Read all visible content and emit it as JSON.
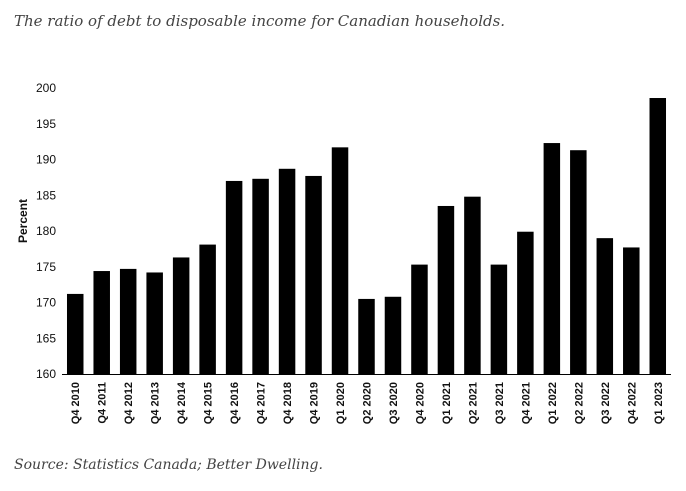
{
  "chart_title": "The ratio of debt to disposable income for Canadian households.",
  "source": "Source: Statistics Canada; Better Dwelling.",
  "chart_data": {
    "type": "bar",
    "title": "The ratio of debt to disposable income for Canadian households.",
    "xlabel": "",
    "ylabel": "Percent",
    "ylim": [
      160,
      200
    ],
    "yticks": [
      160,
      165,
      170,
      175,
      180,
      185,
      190,
      195,
      200
    ],
    "grid": false,
    "bar_color": "#000000",
    "categories": [
      "Q4 2010",
      "Q4 2011",
      "Q4 2012",
      "Q4 2013",
      "Q4 2014",
      "Q4 2015",
      "Q4 2016",
      "Q4 2017",
      "Q4 2018",
      "Q4 2019",
      "Q1 2020",
      "Q2 2020",
      "Q3 2020",
      "Q4 2020",
      "Q1 2021",
      "Q2 2021",
      "Q3 2021",
      "Q4 2021",
      "Q1 2022",
      "Q2 2022",
      "Q3 2022",
      "Q4 2022",
      "Q1 2023"
    ],
    "values": [
      171.2,
      174.4,
      174.7,
      174.2,
      176.3,
      178.1,
      187.0,
      187.3,
      188.7,
      187.7,
      191.7,
      170.5,
      170.8,
      175.3,
      183.5,
      184.8,
      175.3,
      179.9,
      192.3,
      191.3,
      179.0,
      177.7,
      198.6
    ]
  }
}
